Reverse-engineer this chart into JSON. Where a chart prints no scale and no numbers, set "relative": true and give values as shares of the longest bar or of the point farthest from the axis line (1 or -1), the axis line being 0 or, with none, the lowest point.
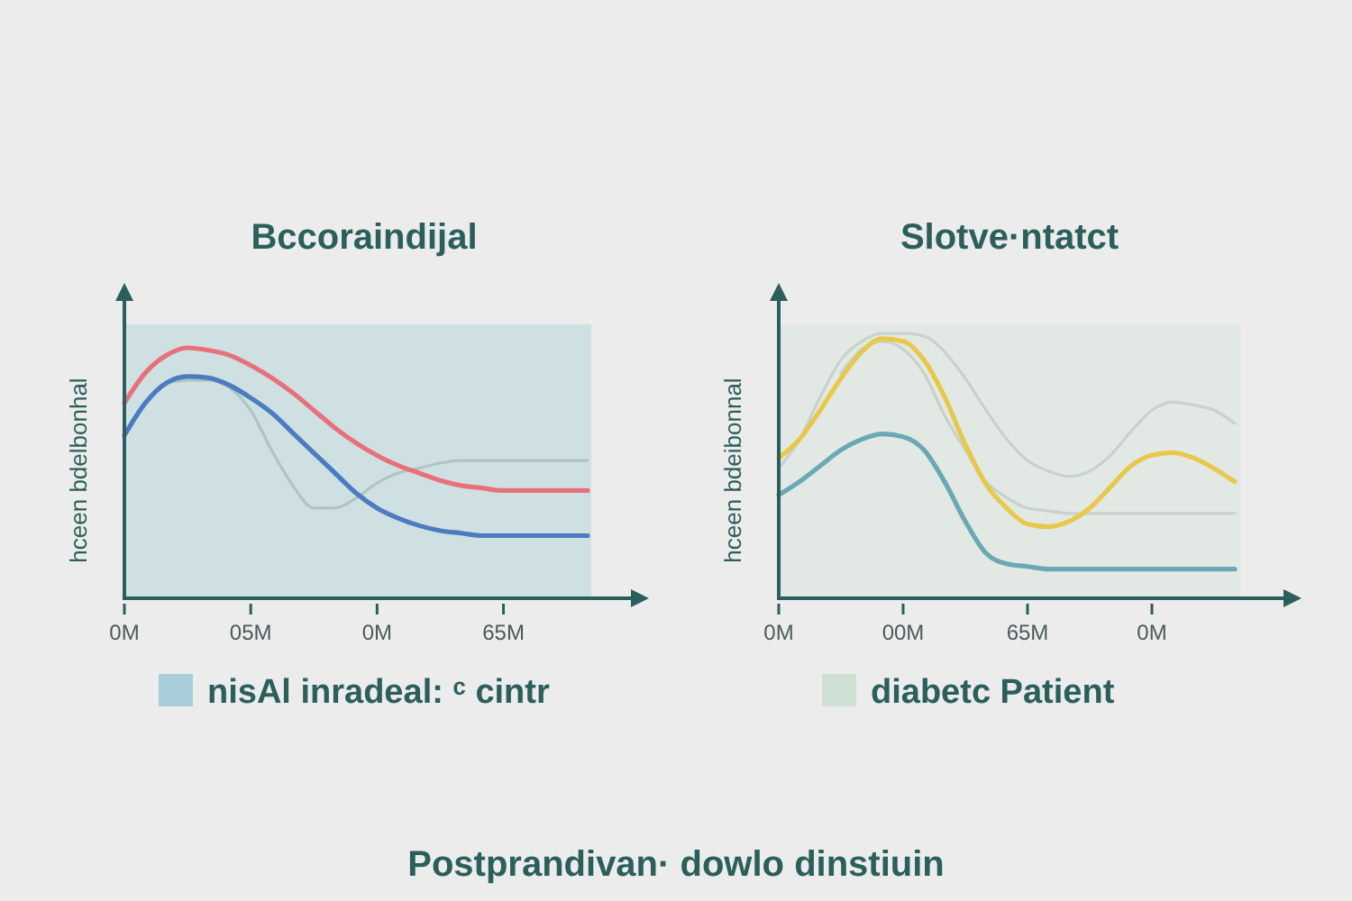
{
  "chart_data": [
    {
      "type": "line",
      "title": "Bccoraindijal",
      "ylabel": "hceen bdelbonhal",
      "relative": true,
      "categories": [
        "0M",
        null,
        null,
        null,
        null,
        null,
        "05M",
        null,
        null,
        null,
        null,
        null,
        "0M",
        null,
        null,
        null,
        null,
        null,
        "65M",
        null,
        null,
        null,
        null
      ],
      "series": [
        {
          "color": "#e8707a",
          "values": [
            0.78,
            0.9,
            0.97,
            1.0,
            0.99,
            0.97,
            0.93,
            0.88,
            0.82,
            0.75,
            0.68,
            0.62,
            0.57,
            0.53,
            0.5,
            0.47,
            0.45,
            0.44,
            0.43,
            0.43,
            0.43,
            0.43,
            0.43
          ]
        },
        {
          "color": "#4a7cc0",
          "values": [
            0.65,
            0.78,
            0.86,
            0.885,
            0.88,
            0.85,
            0.8,
            0.74,
            0.66,
            0.58,
            0.5,
            0.42,
            0.36,
            0.32,
            0.29,
            0.27,
            0.26,
            0.25,
            0.25,
            0.25,
            0.25,
            0.25,
            0.25
          ]
        },
        {
          "color": "#b3c3c3",
          "values": [
            null,
            null,
            0.86,
            0.87,
            0.87,
            0.84,
            0.75,
            0.59,
            0.45,
            0.36,
            0.36,
            0.4,
            0.46,
            0.5,
            0.52,
            0.54,
            0.55,
            0.55,
            0.55,
            0.55,
            0.55,
            0.55,
            0.55
          ]
        }
      ],
      "annotations": [
        "nisAl inradeal: ᶜ cintr",
        "Postprandivan· dowlo dinstiuin"
      ]
    },
    {
      "type": "line",
      "title": "Slotve·ntatct",
      "ylabel": "hceen bdeibonnal",
      "relative": true,
      "categories": [
        "0M",
        null,
        null,
        null,
        null,
        null,
        "00M",
        null,
        null,
        null,
        null,
        null,
        "65M",
        null,
        null,
        null,
        null,
        null,
        "0M",
        null,
        null,
        null,
        null
      ],
      "series": [
        {
          "color": "#e8c84a",
          "values": [
            0.53,
            0.6,
            0.71,
            0.83,
            0.93,
            0.98,
            0.97,
            0.9,
            0.76,
            0.58,
            0.43,
            0.34,
            0.28,
            0.27,
            0.29,
            0.34,
            0.42,
            0.5,
            0.54,
            0.55,
            0.53,
            0.49,
            0.44
          ]
        },
        {
          "color": "#6aa8b4",
          "values": [
            0.39,
            0.44,
            0.5,
            0.56,
            0.6,
            0.62,
            0.61,
            0.56,
            0.44,
            0.29,
            0.17,
            0.13,
            0.12,
            0.11,
            0.11,
            0.11,
            0.11,
            0.11,
            0.11,
            0.11,
            0.11,
            0.11,
            0.11
          ]
        },
        {
          "color": "#c9d1cd",
          "values": [
            0.49,
            0.6,
            0.76,
            0.9,
            0.97,
            1.0,
            1.0,
            0.99,
            0.93,
            0.83,
            0.71,
            0.6,
            0.52,
            0.48,
            0.46,
            0.48,
            0.54,
            0.63,
            0.71,
            0.74,
            0.73,
            0.71,
            0.66
          ]
        },
        {
          "color": "#c9d1cd",
          "values": [
            null,
            null,
            null,
            0.85,
            0.94,
            0.97,
            0.94,
            0.85,
            0.69,
            0.56,
            0.44,
            0.38,
            0.34,
            0.33,
            0.32,
            0.32,
            0.32,
            0.32,
            0.32,
            0.32,
            0.32,
            0.32,
            0.32
          ]
        }
      ],
      "annotations": [
        "diabetc Patient"
      ]
    }
  ]
}
